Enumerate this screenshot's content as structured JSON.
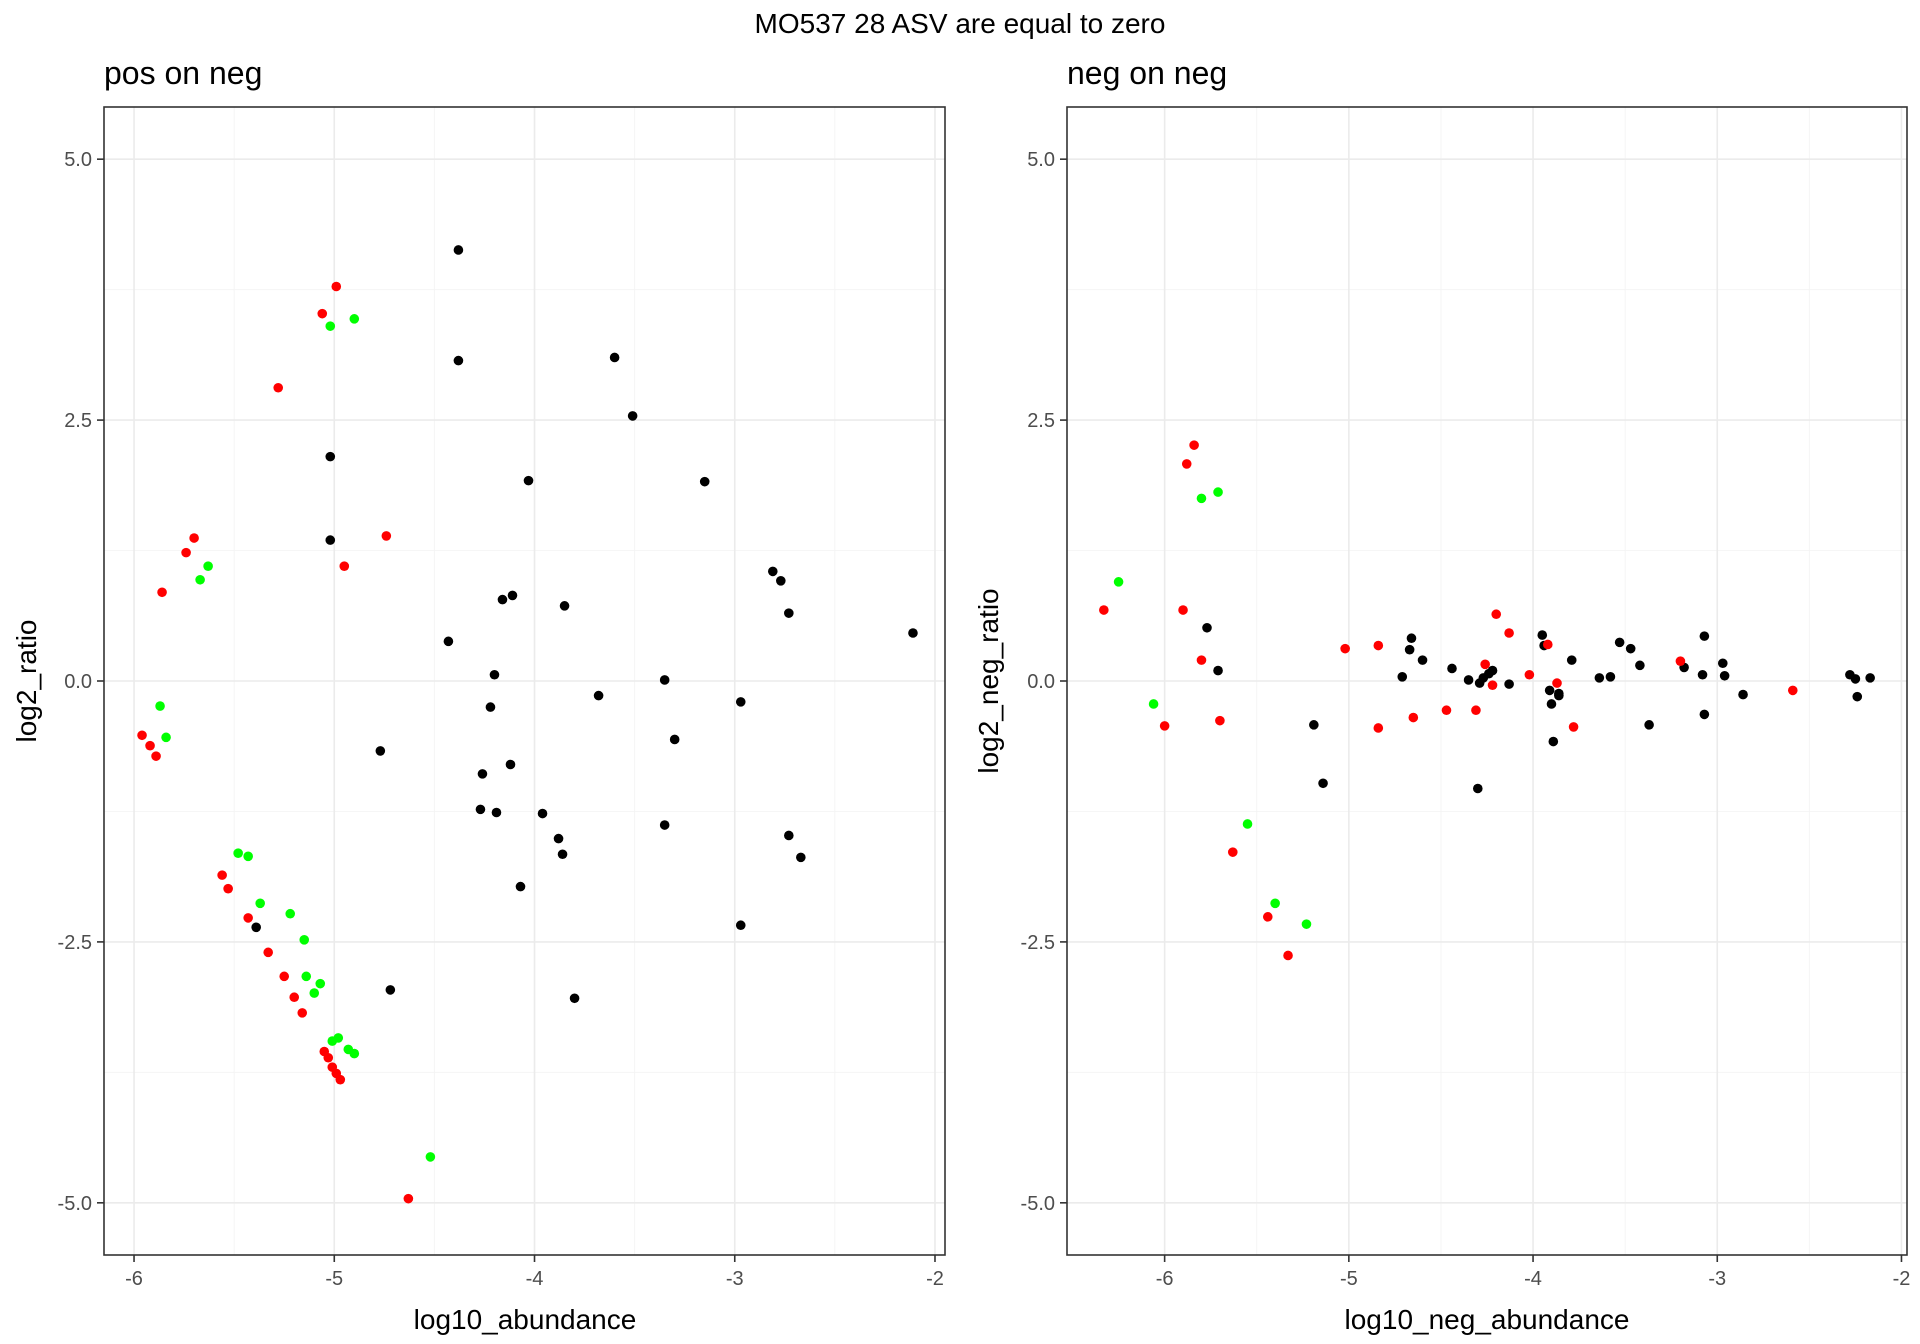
{
  "suptitle": "MO537 28 ASV are equal to zero",
  "colors": {
    "black": "#000000",
    "red": "#ff0000",
    "green": "#00ff00"
  },
  "chart_data": [
    {
      "type": "scatter",
      "title": "pos on neg",
      "xlabel": "log10_abundance",
      "ylabel": "log2_ratio",
      "xlim": [
        -6.15,
        -1.95
      ],
      "ylim": [
        -5.5,
        5.5
      ],
      "xticks": [
        -6,
        -5,
        -4,
        -3,
        -2
      ],
      "xtick_labels": [
        "-6",
        "-5",
        "-4",
        "-3",
        "-2"
      ],
      "yticks": [
        -5,
        -2.5,
        0,
        2.5,
        5
      ],
      "ytick_labels": [
        "-5.0",
        "-2.5",
        "0.0",
        "2.5",
        "5.0"
      ],
      "grid": true,
      "series": [
        {
          "color": "#000000",
          "x": [
            -4.38,
            -4.38,
            -3.6,
            -3.51,
            -5.02,
            -4.03,
            -3.15,
            -5.02,
            -2.81,
            -2.77,
            -2.73,
            -3.85,
            -4.16,
            -4.11,
            -4.43,
            -4.2,
            -3.35,
            -4.22,
            -3.68,
            -2.97,
            -3.3,
            -4.77,
            -4.12,
            -4.26,
            -4.27,
            -4.19,
            -3.96,
            -3.88,
            -3.86,
            -3.35,
            -2.73,
            -2.67,
            -4.07,
            -5.39,
            -4.72,
            -3.8,
            -2.97,
            -2.11
          ],
          "y": [
            4.13,
            3.07,
            3.1,
            2.54,
            2.15,
            1.92,
            1.91,
            1.35,
            1.05,
            0.96,
            0.65,
            0.72,
            0.78,
            0.82,
            0.38,
            0.06,
            0.01,
            -0.25,
            -0.14,
            -0.2,
            -0.56,
            -0.67,
            -0.8,
            -0.89,
            -1.23,
            -1.26,
            -1.27,
            -1.51,
            -1.66,
            -1.38,
            -1.48,
            -1.69,
            -1.97,
            -2.36,
            -2.96,
            -3.04,
            -2.34,
            0.46
          ]
        },
        {
          "color": "#ff0000",
          "x": [
            -4.99,
            -5.06,
            -5.28,
            -4.74,
            -4.95,
            -5.7,
            -5.74,
            -5.86,
            -5.96,
            -5.92,
            -5.89,
            -5.56,
            -5.53,
            -5.43,
            -5.33,
            -5.25,
            -5.2,
            -5.16,
            -5.05,
            -5.03,
            -5.01,
            -4.99,
            -4.97,
            -4.63
          ],
          "y": [
            3.78,
            3.52,
            2.81,
            1.39,
            1.1,
            1.37,
            1.23,
            0.85,
            -0.52,
            -0.62,
            -0.72,
            -1.86,
            -1.99,
            -2.27,
            -2.6,
            -2.83,
            -3.03,
            -3.18,
            -3.55,
            -3.61,
            -3.7,
            -3.76,
            -3.82,
            -4.96
          ]
        },
        {
          "color": "#00ff00",
          "x": [
            -5.02,
            -4.9,
            -5.63,
            -5.67,
            -5.87,
            -5.84,
            -5.48,
            -5.43,
            -5.37,
            -5.22,
            -5.15,
            -5.14,
            -5.07,
            -5.1,
            -5.01,
            -4.98,
            -4.93,
            -4.9,
            -4.52
          ],
          "y": [
            3.4,
            3.47,
            1.1,
            0.97,
            -0.24,
            -0.54,
            -1.65,
            -1.68,
            -2.13,
            -2.23,
            -2.48,
            -2.83,
            -2.9,
            -2.99,
            -3.45,
            -3.42,
            -3.53,
            -3.57,
            -4.56
          ]
        }
      ]
    },
    {
      "type": "scatter",
      "title": "neg on neg",
      "xlabel": "log10_neg_abundance",
      "ylabel": "log2_neg_ratio",
      "xlim": [
        -6.53,
        -1.97
      ],
      "ylim": [
        -5.5,
        5.5
      ],
      "xticks": [
        -6,
        -5,
        -4,
        -3,
        -2
      ],
      "xtick_labels": [
        "-6",
        "-5",
        "-4",
        "-3",
        "-2"
      ],
      "yticks": [
        -5,
        -2.5,
        0,
        2.5,
        5
      ],
      "ytick_labels": [
        "-5.0",
        "-2.5",
        "0.0",
        "2.5",
        "5.0"
      ],
      "grid": true,
      "series": [
        {
          "color": "#000000",
          "x": [
            -5.77,
            -5.71,
            -5.19,
            -5.14,
            -4.66,
            -4.67,
            -4.6,
            -4.71,
            -4.44,
            -4.35,
            -4.29,
            -4.24,
            -4.22,
            -4.13,
            -3.95,
            -3.94,
            -3.9,
            -3.86,
            -3.86,
            -3.89,
            -3.79,
            -3.64,
            -3.58,
            -3.53,
            -3.47,
            -3.42,
            -3.37,
            -3.18,
            -3.07,
            -3.08,
            -3.07,
            -2.97,
            -2.96,
            -2.86,
            -2.28,
            -2.25,
            -2.24,
            -2.17,
            -4.3,
            -4.27,
            -3.91
          ],
          "y": [
            0.51,
            0.1,
            -0.42,
            -0.98,
            0.41,
            0.3,
            0.2,
            0.04,
            0.12,
            0.01,
            -0.02,
            0.07,
            0.1,
            -0.03,
            0.44,
            0.34,
            -0.22,
            -0.12,
            -0.14,
            -0.58,
            0.2,
            0.03,
            0.04,
            0.37,
            0.31,
            0.15,
            -0.42,
            0.13,
            0.43,
            0.06,
            -0.32,
            0.17,
            0.05,
            -0.13,
            0.06,
            0.02,
            -0.15,
            0.03,
            -1.03,
            0.03,
            -0.09
          ]
        },
        {
          "color": "#ff0000",
          "x": [
            -5.84,
            -5.88,
            -6.33,
            -5.9,
            -5.8,
            -6.0,
            -5.7,
            -5.63,
            -5.44,
            -5.33,
            -5.02,
            -4.84,
            -4.84,
            -4.65,
            -4.47,
            -4.31,
            -4.26,
            -4.22,
            -4.2,
            -4.13,
            -4.02,
            -3.92,
            -3.87,
            -3.78,
            -3.2,
            -2.59
          ],
          "y": [
            2.26,
            2.08,
            0.68,
            0.68,
            0.2,
            -0.43,
            -0.38,
            -1.64,
            -2.26,
            -2.63,
            0.31,
            0.34,
            -0.45,
            -0.35,
            -0.28,
            -0.28,
            0.16,
            -0.04,
            0.64,
            0.46,
            0.06,
            0.35,
            -0.02,
            -0.44,
            0.19,
            -0.09
          ]
        },
        {
          "color": "#00ff00",
          "x": [
            -5.8,
            -5.71,
            -6.25,
            -6.06,
            -5.55,
            -5.4,
            -5.23
          ],
          "y": [
            1.75,
            1.81,
            0.95,
            -0.22,
            -1.37,
            -2.13,
            -2.33
          ]
        }
      ]
    }
  ]
}
